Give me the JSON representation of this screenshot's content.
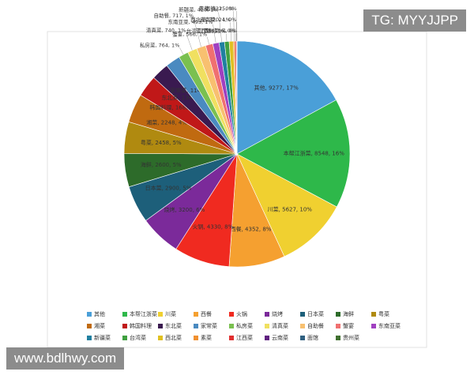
{
  "watermarks": [
    "TG: MYYJJPP",
    "www.bdlhwy.com"
  ],
  "chart_data": {
    "type": "pie",
    "categories": [
      "其他",
      "本帮江浙菜",
      "川菜",
      "西餐",
      "火锅",
      "烧烤",
      "日本菜",
      "海鲜",
      "粤菜",
      "湘菜",
      "韩国料理",
      "东北菜",
      "家常菜",
      "私房菜",
      "清真菜",
      "自助餐",
      "蟹宴",
      "东南亚菜",
      "新疆菜",
      "台湾菜",
      "西北菜",
      "素菜",
      "江西菜",
      "云南菜",
      "面馆",
      "贵州菜"
    ],
    "values": [
      9277,
      8548,
      5627,
      4352,
      4330,
      3200,
      2900,
      2600,
      2458,
      2248,
      1682,
      1362,
      1147,
      764,
      740,
      717,
      566,
      493,
      420,
      359,
      320,
      132,
      106,
      24,
      15,
      7
    ],
    "value_labels": [
      "其他, 9277, 17%",
      "本帮江浙菜, 8548, 16%",
      "川菜, 5627, 10%",
      "西餐, 4352, 8%",
      "火锅, 4330, 8%",
      "烧烤, 3200, 6%",
      "日本菜, 2900, 5%",
      "海鲜, 2600, 5%",
      "粤菜, 2458, 5%",
      "湘菜, 2248, 4%",
      "韩国料理, 1682, 3%",
      "东北菜, 1362, 2%",
      "家常菜, 1147, 2%",
      "私房菜, 764, 1%",
      "清真菜, 740, 1%",
      "自助餐, 717, 1%",
      "蟹宴, 566, 1%",
      "东南亚菜, 493, 1%",
      "新疆菜, 420, 1%",
      "台湾菜, 359, 1%",
      "西北菜, 320, 1%",
      "素菜, 132, 0%",
      "江西菜, 106, 0%",
      "云南菜, 24, 0%",
      "面馆, 15, 0%",
      "贵州菜, 7, 0%"
    ],
    "colors": [
      "#4a9fd8",
      "#2eb84a",
      "#f0d030",
      "#f5a030",
      "#f02a20",
      "#7b2a9a",
      "#1d5f7a",
      "#2d6b2a",
      "#b08a10",
      "#c06a10",
      "#c01818",
      "#3a1a50",
      "#4a8ac0",
      "#7ac050",
      "#f0e060",
      "#f8c070",
      "#f07070",
      "#a040c0",
      "#2080a0",
      "#40a040",
      "#e0c020",
      "#f09030",
      "#e03030",
      "#602080",
      "#306080",
      "#407030"
    ],
    "legend": "bottom"
  }
}
